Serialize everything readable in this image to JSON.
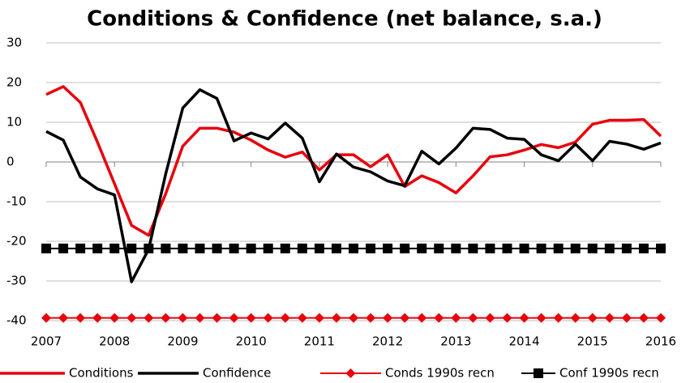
{
  "chart_data": {
    "type": "line",
    "title": "Conditions & Confidence (net balance, s.a.)",
    "x": [
      2007,
      2007.25,
      2007.5,
      2007.75,
      2008,
      2008.25,
      2008.5,
      2008.75,
      2009,
      2009.25,
      2009.5,
      2009.75,
      2010,
      2010.25,
      2010.5,
      2010.75,
      2011,
      2011.25,
      2011.5,
      2011.75,
      2012,
      2012.25,
      2012.5,
      2012.75,
      2013,
      2013.25,
      2013.5,
      2013.75,
      2014,
      2014.25,
      2014.5,
      2014.75,
      2015,
      2015.25,
      2015.5,
      2015.75,
      2016
    ],
    "series": [
      {
        "name": "Conditions",
        "color": "#e8000b",
        "values": [
          17,
          19,
          15,
          5,
          -5.5,
          -16,
          -18.5,
          -8,
          4,
          8.5,
          8.5,
          7.5,
          5.5,
          3,
          1.2,
          2.5,
          -2,
          1.8,
          1.8,
          -1.2,
          1.8,
          -6.2,
          -3.5,
          -5.2,
          -7.8,
          -3.5,
          1.3,
          1.8,
          3,
          4.4,
          3.6,
          5,
          9.5,
          10.5,
          10.5,
          10.7,
          6.5
        ]
      },
      {
        "name": "Confidence",
        "color": "#000000",
        "values": [
          7.7,
          5.5,
          -3.8,
          -6.8,
          -8.3,
          -30.2,
          -22,
          -3,
          13.6,
          18.2,
          16,
          5.3,
          7.3,
          5.8,
          9.8,
          6,
          -5,
          2,
          -1.3,
          -2.5,
          -4.8,
          -6,
          2.7,
          -0.5,
          3.5,
          8.5,
          8.2,
          6,
          5.7,
          1.8,
          0.3,
          4.5,
          0.3,
          5.2,
          4.5,
          3.2,
          4.8
        ]
      },
      {
        "name": "Conds 1990s recn",
        "color": "#e8000b",
        "marker": "diamond",
        "values": [
          -39.3,
          -39.3,
          -39.3,
          -39.3,
          -39.3,
          -39.3,
          -39.3,
          -39.3,
          -39.3,
          -39.3,
          -39.3,
          -39.3,
          -39.3,
          -39.3,
          -39.3,
          -39.3,
          -39.3,
          -39.3,
          -39.3,
          -39.3,
          -39.3,
          -39.3,
          -39.3,
          -39.3,
          -39.3,
          -39.3,
          -39.3,
          -39.3,
          -39.3,
          -39.3,
          -39.3,
          -39.3,
          -39.3,
          -39.3,
          -39.3,
          -39.3,
          -39.3
        ]
      },
      {
        "name": "Conf 1990s recn",
        "color": "#000000",
        "marker": "square",
        "values": [
          -21.8,
          -21.8,
          -21.8,
          -21.8,
          -21.8,
          -21.8,
          -21.8,
          -21.8,
          -21.8,
          -21.8,
          -21.8,
          -21.8,
          -21.8,
          -21.8,
          -21.8,
          -21.8,
          -21.8,
          -21.8,
          -21.8,
          -21.8,
          -21.8,
          -21.8,
          -21.8,
          -21.8,
          -21.8,
          -21.8,
          -21.8,
          -21.8,
          -21.8,
          -21.8,
          -21.8,
          -21.8,
          -21.8,
          -21.8,
          -21.8,
          -21.8,
          -21.8
        ]
      }
    ],
    "xlim": [
      2007,
      2016
    ],
    "xticks": [
      2007,
      2008,
      2009,
      2010,
      2011,
      2012,
      2013,
      2014,
      2015,
      2016
    ],
    "ylim": [
      -40,
      30
    ],
    "yticks": [
      -40,
      -30,
      -20,
      -10,
      0,
      10,
      20,
      30
    ],
    "grid": true,
    "legend": "bottom"
  }
}
